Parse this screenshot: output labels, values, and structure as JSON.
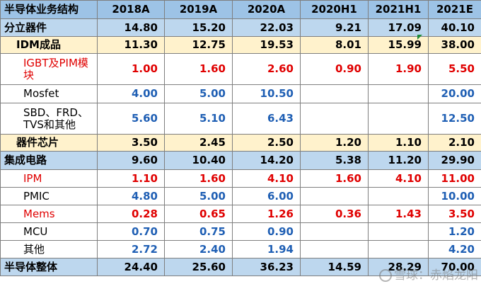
{
  "header": [
    "半导体业务结构",
    "2018A",
    "2019A",
    "2020A",
    "2020H1",
    "2021H1",
    "2021E"
  ],
  "rows": [
    {
      "label": "分立器件",
      "values": [
        "14.80",
        "15.20",
        "22.03",
        "9.21",
        "17.09",
        "40.10"
      ],
      "style": "blue"
    },
    {
      "label": "IDM成品",
      "values": [
        "11.30",
        "12.75",
        "19.53",
        "8.01",
        "15.99",
        "38.00"
      ],
      "style": "yellow"
    },
    {
      "label": "IGBT及PIM模块",
      "values": [
        "1.00",
        "1.60",
        "2.60",
        "0.90",
        "1.90",
        "5.50"
      ],
      "style": "white red"
    },
    {
      "label": "Mosfet",
      "values": [
        "4.00",
        "5.00",
        "10.50",
        "",
        "",
        "20.00"
      ],
      "style": "white"
    },
    {
      "label": "SBD、FRD、TVS和其他",
      "values": [
        "5.60",
        "5.10",
        "6.43",
        "",
        "",
        "12.50"
      ],
      "style": "white"
    },
    {
      "label": "器件芯片",
      "values": [
        "3.50",
        "2.45",
        "2.50",
        "1.20",
        "1.10",
        "2.10"
      ],
      "style": "yellow"
    },
    {
      "label": "集成电路",
      "values": [
        "9.60",
        "10.40",
        "14.20",
        "5.38",
        "11.20",
        "29.90"
      ],
      "style": "blue"
    },
    {
      "label": "IPM",
      "values": [
        "1.10",
        "1.60",
        "4.10",
        "1.60",
        "4.10",
        "11.00"
      ],
      "style": "white red"
    },
    {
      "label": "PMIC",
      "values": [
        "4.80",
        "5.00",
        "6.00",
        "",
        "",
        "10.00"
      ],
      "style": "white"
    },
    {
      "label": "Mems",
      "values": [
        "0.28",
        "0.65",
        "1.26",
        "0.36",
        "1.43",
        "3.50"
      ],
      "style": "white red"
    },
    {
      "label": "MCU",
      "values": [
        "0.70",
        "0.75",
        "0.90",
        "",
        "",
        "1.20"
      ],
      "style": "white"
    },
    {
      "label": "其他",
      "values": [
        "2.72",
        "2.40",
        "1.94",
        "",
        "",
        "4.20"
      ],
      "style": "white"
    },
    {
      "label": "半导体整体",
      "values": [
        "24.40",
        "25.60",
        "36.23",
        "14.59",
        "28.29",
        "70.00"
      ],
      "style": "blue"
    }
  ],
  "watermark": "雪球：赤焰龙阳",
  "colors": {
    "header_bg": "#9dc3e6",
    "section_bg": "#bdd7ee",
    "sub_bg": "#fff2cc",
    "value_blue": "#1f5fb4",
    "value_red": "#e00000"
  }
}
